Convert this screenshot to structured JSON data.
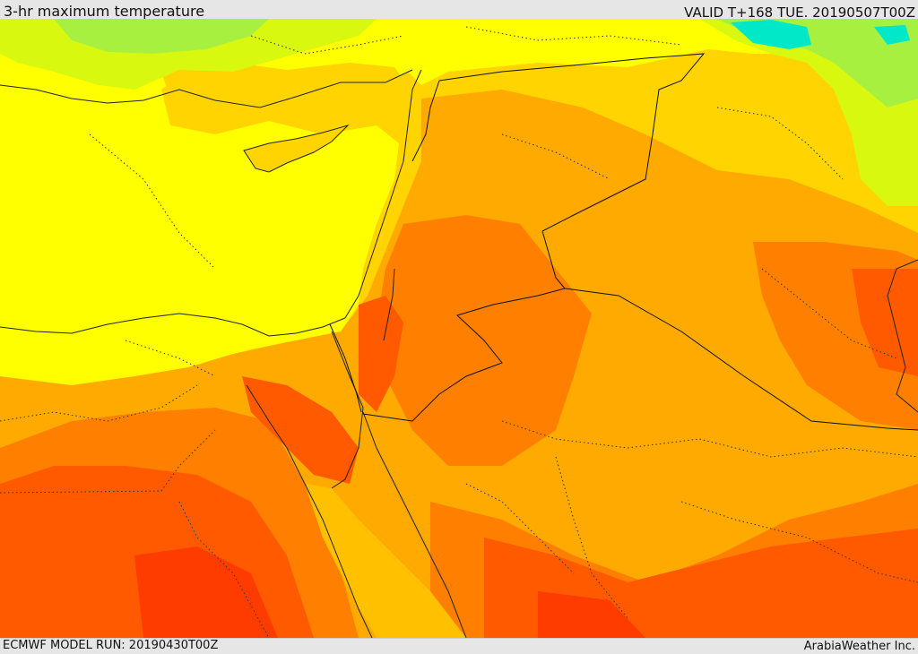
{
  "header": {
    "title": "3-hr maximum temperature",
    "valid": "VALID T+168 TUE. 20190507T00Z"
  },
  "footer": {
    "model_run": "ECMWF MODEL RUN: 20190430T00Z",
    "brand": "ArabiaWeather Inc."
  },
  "map": {
    "colors": {
      "cyan": "#00e8c8",
      "light_green": "#a8f040",
      "yellow_green": "#d8f810",
      "yellow": "#ffff00",
      "gold": "#ffd400",
      "light_orange": "#ffaa00",
      "orange": "#ff8000",
      "dark_orange": "#ff5a00",
      "red_orange": "#ff3c00",
      "coastline": "#222222",
      "border": "#111111"
    }
  }
}
